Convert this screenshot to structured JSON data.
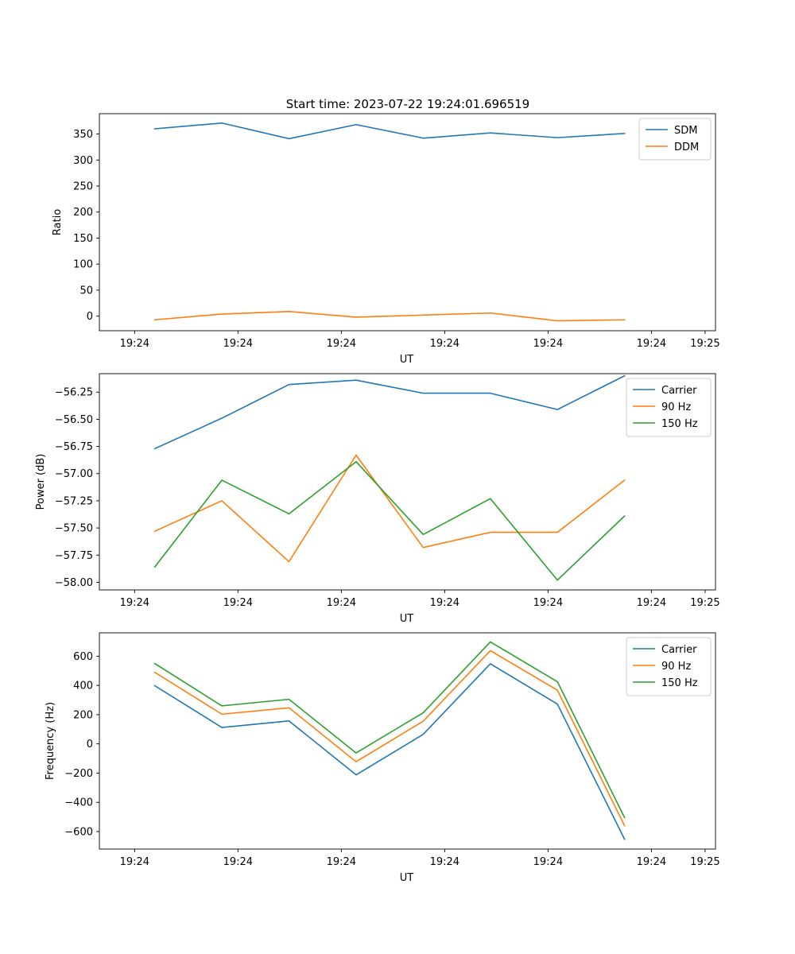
{
  "title": "Start time: 2023-07-22 19:24:01.696519",
  "colors": {
    "blue": "#1f77b4",
    "orange": "#ff7f0e",
    "green": "#2ca02c"
  },
  "chart_data": [
    {
      "type": "line",
      "title": "Start time: 2023-07-22 19:24:01.696519",
      "xlabel": "UT",
      "ylabel": "Ratio",
      "x": [
        1,
        2,
        3,
        4,
        5,
        6,
        7,
        8
      ],
      "xlim": [
        0.175,
        9.355
      ],
      "ylim": [
        -28,
        389
      ],
      "xticks": [
        0.7,
        2.24,
        3.78,
        5.32,
        6.86,
        8.4,
        9.2
      ],
      "xticklabels": [
        "19:24",
        "19:24",
        "19:24",
        "19:24",
        "19:24",
        "19:24",
        "19:25"
      ],
      "yticks": [
        0,
        50,
        100,
        150,
        200,
        250,
        300,
        350
      ],
      "yticklabels": [
        "0",
        "50",
        "100",
        "150",
        "200",
        "250",
        "300",
        "350"
      ],
      "legend": "top-right",
      "series": [
        {
          "name": "SDM",
          "color": "#1f77b4",
          "values": [
            360,
            371,
            341,
            368,
            342,
            352,
            343,
            351
          ]
        },
        {
          "name": "DDM",
          "color": "#ff7f0e",
          "values": [
            -7,
            4,
            9,
            -2,
            2,
            6,
            -9,
            -7
          ]
        }
      ]
    },
    {
      "type": "line",
      "xlabel": "UT",
      "ylabel": "Power (dB)",
      "x": [
        1,
        2,
        3,
        4,
        5,
        6,
        7,
        8
      ],
      "xlim": [
        0.175,
        9.355
      ],
      "ylim": [
        -58.07,
        -56.08
      ],
      "xticks": [
        0.7,
        2.24,
        3.78,
        5.32,
        6.86,
        8.4,
        9.2
      ],
      "xticklabels": [
        "19:24",
        "19:24",
        "19:24",
        "19:24",
        "19:24",
        "19:24",
        "19:25"
      ],
      "yticks": [
        -58.0,
        -57.75,
        -57.5,
        -57.25,
        -57.0,
        -56.75,
        -56.5,
        -56.25
      ],
      "yticklabels": [
        "−58.00",
        "−57.75",
        "−57.50",
        "−57.25",
        "−57.00",
        "−56.75",
        "−56.50",
        "−56.25"
      ],
      "legend": "top-right",
      "series": [
        {
          "name": "Carrier",
          "color": "#1f77b4",
          "values": [
            -56.77,
            -56.49,
            -56.18,
            -56.14,
            -56.26,
            -56.26,
            -56.41,
            -56.1
          ]
        },
        {
          "name": "90 Hz",
          "color": "#ff7f0e",
          "values": [
            -57.53,
            -57.25,
            -57.81,
            -56.83,
            -57.68,
            -57.54,
            -57.54,
            -57.06
          ]
        },
        {
          "name": "150 Hz",
          "color": "#2ca02c",
          "values": [
            -57.86,
            -57.06,
            -57.37,
            -56.89,
            -57.56,
            -57.23,
            -57.98,
            -57.39
          ]
        }
      ]
    },
    {
      "type": "line",
      "xlabel": "UT",
      "ylabel": "Frequency (Hz)",
      "x": [
        1,
        2,
        3,
        4,
        5,
        6,
        7,
        8
      ],
      "xlim": [
        0.175,
        9.355
      ],
      "ylim": [
        -720,
        760
      ],
      "xticks": [
        0.7,
        2.24,
        3.78,
        5.32,
        6.86,
        8.4,
        9.2
      ],
      "xticklabels": [
        "19:24",
        "19:24",
        "19:24",
        "19:24",
        "19:24",
        "19:24",
        "19:25"
      ],
      "yticks": [
        -600,
        -400,
        -200,
        0,
        200,
        400,
        600
      ],
      "yticklabels": [
        "−600",
        "−400",
        "−200",
        "0",
        "200",
        "400",
        "600"
      ],
      "legend": "top-right",
      "series": [
        {
          "name": "Carrier",
          "color": "#1f77b4",
          "values": [
            398,
            112,
            157,
            -212,
            65,
            548,
            272,
            -653
          ]
        },
        {
          "name": "90 Hz",
          "color": "#ff7f0e",
          "values": [
            490,
            203,
            247,
            -122,
            155,
            638,
            367,
            -560
          ]
        },
        {
          "name": "150 Hz",
          "color": "#2ca02c",
          "values": [
            550,
            260,
            305,
            -62,
            213,
            698,
            425,
            -505
          ]
        }
      ]
    }
  ]
}
